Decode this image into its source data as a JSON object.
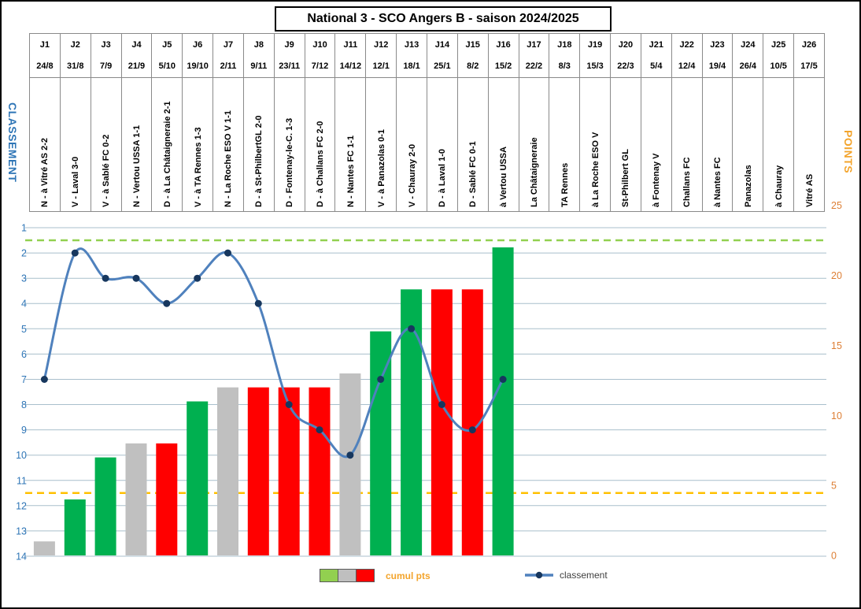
{
  "title": "National 3 - SCO Angers B - saison 2024/2025",
  "axes": {
    "left_label": "CLASSEMENT",
    "right_label": "POINTS",
    "left_ticks": [
      1,
      2,
      3,
      4,
      5,
      6,
      7,
      8,
      9,
      10,
      11,
      12,
      13,
      14
    ],
    "right_ticks": [
      25,
      20,
      15,
      10,
      5,
      0
    ]
  },
  "legend": {
    "bars_label": "cumul pts",
    "line_label": "classement",
    "swatch_colors": [
      "#92D050",
      "#BFBFBF",
      "#FF0000"
    ]
  },
  "colors": {
    "win_bar": "#00B050",
    "draw_bar": "#C0C0C0",
    "loss_bar": "#FF0000",
    "line": "#4F81BD",
    "dot": "#17375E",
    "gridline": "#A9BFCC",
    "axis_blue": "#2E75B6",
    "axis_orange": "#DD7E33",
    "label_orange": "#F3A42C",
    "promotion_dash": "#92D050",
    "relegation_dash": "#FFC000"
  },
  "matchdays": [
    {
      "day": "J1",
      "date": "24/8",
      "label": "N - à Vitré AS 2-2",
      "result": "N"
    },
    {
      "day": "J2",
      "date": "31/8",
      "label": "V - Laval 3-0",
      "result": "V"
    },
    {
      "day": "J3",
      "date": "7/9",
      "label": "V - à Sablé FC 0-2",
      "result": "V"
    },
    {
      "day": "J4",
      "date": "21/9",
      "label": "N - Vertou USSA 1-1",
      "result": "N"
    },
    {
      "day": "J5",
      "date": "5/10",
      "label": "D - à La Châtaigneraie 2-1",
      "result": "D"
    },
    {
      "day": "J6",
      "date": "19/10",
      "label": "V - à TA Rennes 1-3",
      "result": "V"
    },
    {
      "day": "J7",
      "date": "2/11",
      "label": "N - La Roche ESO V 1-1",
      "result": "N"
    },
    {
      "day": "J8",
      "date": "9/11",
      "label": "D - à St-PhilbertGL 2-0",
      "result": "D"
    },
    {
      "day": "J9",
      "date": "23/11",
      "label": "D - Fontenay-le-C. 1-3",
      "result": "D"
    },
    {
      "day": "J10",
      "date": "7/12",
      "label": "D - à Challans FC 2-0",
      "result": "D"
    },
    {
      "day": "J11",
      "date": "14/12",
      "label": "N - Nantes FC 1-1",
      "result": "N"
    },
    {
      "day": "J12",
      "date": "12/1",
      "label": "V - à Panazolas 0-1",
      "result": "V"
    },
    {
      "day": "J13",
      "date": "18/1",
      "label": "V - Chauray 2-0",
      "result": "V"
    },
    {
      "day": "J14",
      "date": "25/1",
      "label": "D - à Laval 1-0",
      "result": "D"
    },
    {
      "day": "J15",
      "date": "8/2",
      "label": "D - Sablé FC 0-1",
      "result": "D"
    },
    {
      "day": "J16",
      "date": "15/2",
      "label": "à Vertou USSA",
      "result": "V"
    },
    {
      "day": "J17",
      "date": "22/2",
      "label": "La Châtaigneraie",
      "result": null
    },
    {
      "day": "J18",
      "date": "8/3",
      "label": "TA Rennes",
      "result": null
    },
    {
      "day": "J19",
      "date": "15/3",
      "label": "à La Roche ESO V",
      "result": null
    },
    {
      "day": "J20",
      "date": "22/3",
      "label": "St-Philbert GL",
      "result": null
    },
    {
      "day": "J21",
      "date": "5/4",
      "label": "à Fontenay V",
      "result": null
    },
    {
      "day": "J22",
      "date": "12/4",
      "label": "Challans FC",
      "result": null
    },
    {
      "day": "J23",
      "date": "19/4",
      "label": "à Nantes FC",
      "result": null
    },
    {
      "day": "J24",
      "date": "26/4",
      "label": "Panazolas",
      "result": null
    },
    {
      "day": "J25",
      "date": "10/5",
      "label": "à Chauray",
      "result": null
    },
    {
      "day": "J26",
      "date": "17/5",
      "label": "Vitré AS",
      "result": null
    }
  ],
  "chart_data": {
    "type": "bar+line",
    "title": "National 3 - SCO Angers B - saison 2024/2025",
    "categories": [
      "J1",
      "J2",
      "J3",
      "J4",
      "J5",
      "J6",
      "J7",
      "J8",
      "J9",
      "J10",
      "J11",
      "J12",
      "J13",
      "J14",
      "J15",
      "J16",
      "J17",
      "J18",
      "J19",
      "J20",
      "J21",
      "J22",
      "J23",
      "J24",
      "J25",
      "J26"
    ],
    "series": [
      {
        "name": "cumul pts",
        "type": "bar",
        "axis": "right",
        "values": [
          1,
          4,
          7,
          8,
          8,
          11,
          12,
          12,
          12,
          12,
          13,
          16,
          19,
          19,
          19,
          22,
          null,
          null,
          null,
          null,
          null,
          null,
          null,
          null,
          null,
          null
        ]
      },
      {
        "name": "classement",
        "type": "line",
        "axis": "left",
        "values": [
          7,
          2,
          3,
          3,
          4,
          3,
          2,
          4,
          8,
          9,
          10,
          7,
          5,
          8,
          9,
          7,
          null,
          null,
          null,
          null,
          null,
          null,
          null,
          null,
          null,
          null
        ]
      }
    ],
    "left_axis": {
      "label": "CLASSEMENT",
      "min": 1,
      "max": 14,
      "inverted": true,
      "grid": true
    },
    "right_axis": {
      "label": "POINTS",
      "min": 0,
      "max": 25,
      "ticks": [
        0,
        5,
        10,
        15,
        20,
        25
      ],
      "grid": false
    },
    "reference_lines": [
      {
        "axis": "left",
        "value": 1.5,
        "style": "dashed",
        "color": "#92D050",
        "meaning": "promotion-line"
      },
      {
        "axis": "left",
        "value": 11.5,
        "style": "dashed",
        "color": "#FFC000",
        "meaning": "relegation-line"
      }
    ],
    "legend_position": "bottom"
  }
}
